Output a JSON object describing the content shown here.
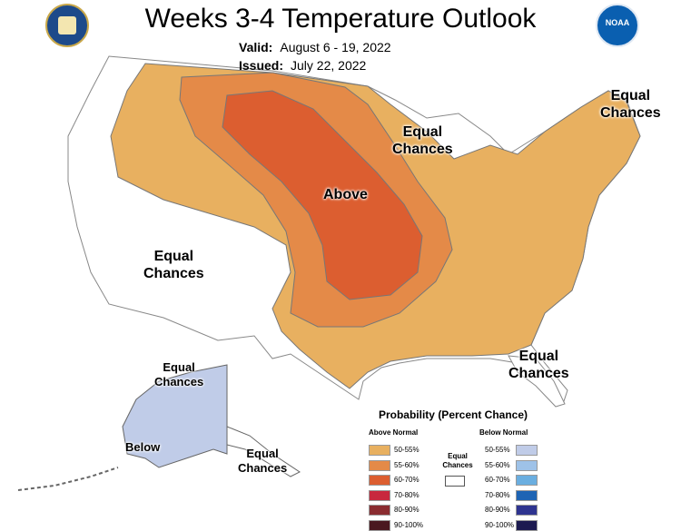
{
  "header": {
    "title": "Weeks 3-4 Temperature Outlook",
    "valid_label": "Valid:",
    "valid_value": "August 6 - 19, 2022",
    "issued_label": "Issued:",
    "issued_value": "July 22, 2022"
  },
  "logos": {
    "left": "doc-seal-icon",
    "right_text": "NOAA"
  },
  "map_labels": {
    "above": "Above",
    "below": "Below",
    "ec_west_1": "Equal",
    "ec_west_2": "Chances",
    "ec_lakes_1": "Equal",
    "ec_lakes_2": "Chances",
    "ec_ne_1": "Equal",
    "ec_ne_2": "Chances",
    "ec_se_1": "Equal",
    "ec_se_2": "Chances",
    "ec_ak_n_1": "Equal",
    "ec_ak_n_2": "Chances",
    "ec_ak_s_1": "Equal",
    "ec_ak_s_2": "Chances"
  },
  "legend": {
    "title": "Probability (Percent Chance)",
    "above_heading": "Above Normal",
    "below_heading": "Below Normal",
    "equal_chances": "Equal Chances",
    "above": [
      {
        "label": "50-55%",
        "color": "#e8b060"
      },
      {
        "label": "55-60%",
        "color": "#e48a48"
      },
      {
        "label": "60-70%",
        "color": "#dc5e30"
      },
      {
        "label": "70-80%",
        "color": "#c8283e"
      },
      {
        "label": "80-90%",
        "color": "#8a2c30"
      },
      {
        "label": "90-100%",
        "color": "#4a1820"
      }
    ],
    "below": [
      {
        "label": "50-55%",
        "color": "#c0cce8"
      },
      {
        "label": "55-60%",
        "color": "#9ec2e8"
      },
      {
        "label": "60-70%",
        "color": "#6aaee0"
      },
      {
        "label": "70-80%",
        "color": "#1e64b4"
      },
      {
        "label": "80-90%",
        "color": "#2e3490"
      },
      {
        "label": "90-100%",
        "color": "#1c1a50"
      }
    ]
  }
}
